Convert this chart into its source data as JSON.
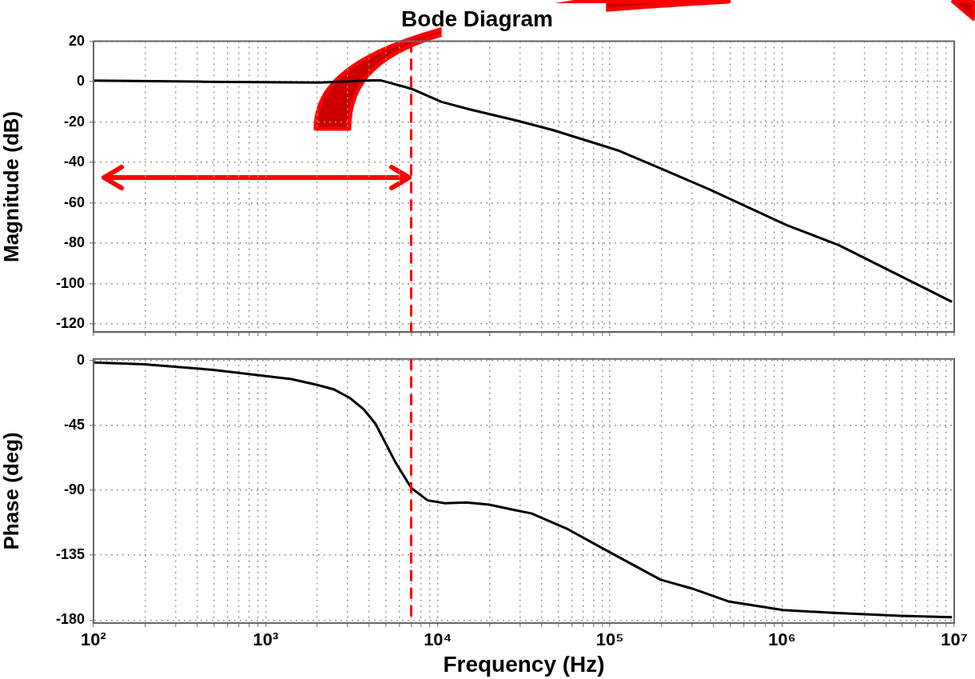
{
  "chart_data": [
    {
      "type": "line",
      "title": "Bode Diagram",
      "ylabel": "Magnitude (dB)",
      "log": "x",
      "grid": true,
      "legend": false,
      "marker": "none",
      "line_style": "solid",
      "tick_labels": "y",
      "xlim": [
        100,
        10000000
      ],
      "xticks": [
        100,
        200,
        300,
        400,
        500,
        600,
        700,
        800,
        900,
        1000,
        2000,
        3000,
        4000,
        5000,
        6000,
        7000,
        8000,
        9000,
        10000,
        20000,
        30000,
        40000,
        50000,
        60000,
        70000,
        80000,
        90000,
        100000,
        200000,
        300000,
        400000,
        500000,
        600000,
        700000,
        800000,
        900000,
        1000000,
        2000000,
        3000000,
        4000000,
        5000000,
        6000000,
        7000000,
        8000000,
        9000000,
        10000000
      ],
      "ylim": [
        -124,
        20
      ],
      "yticks": [
        20,
        0,
        -20,
        -40,
        -60,
        -80,
        -100,
        -120
      ],
      "series": [
        {
          "color": "#000000",
          "x": [
            100,
            400,
            2050,
            4170,
            4680,
            7020,
            10500,
            15300,
            28700,
            46800,
            111000,
            197000,
            379000,
            1060000,
            2140000,
            9700000
          ],
          "values": [
            0.5,
            0,
            -0.5,
            0.6,
            0.6,
            -3.5,
            -10,
            -13.7,
            -19.3,
            -24,
            -34,
            -43,
            -53.4,
            -71,
            -81,
            -109
          ]
        }
      ],
      "ref_lines": [
        {
          "axis": "x",
          "value": 7000,
          "color": "#ff0000",
          "line_style": "dashed"
        }
      ]
    },
    {
      "type": "line",
      "ylabel": "Phase (deg)",
      "xlabel": "Frequency (Hz)",
      "log": "x",
      "grid": true,
      "legend": false,
      "marker": "none",
      "line_style": "solid",
      "xlim": [
        100,
        10000000
      ],
      "xticks": [
        {
          "value": 100,
          "label": "10²"
        },
        {
          "value": 200,
          "label": null
        },
        {
          "value": 300,
          "label": null
        },
        {
          "value": 400,
          "label": null
        },
        {
          "value": 500,
          "label": null
        },
        {
          "value": 600,
          "label": null
        },
        {
          "value": 700,
          "label": null
        },
        {
          "value": 800,
          "label": null
        },
        {
          "value": 900,
          "label": null
        },
        {
          "value": 1000,
          "label": "10³"
        },
        {
          "value": 2000,
          "label": null
        },
        {
          "value": 3000,
          "label": null
        },
        {
          "value": 4000,
          "label": null
        },
        {
          "value": 5000,
          "label": null
        },
        {
          "value": 6000,
          "label": null
        },
        {
          "value": 7000,
          "label": null
        },
        {
          "value": 8000,
          "label": null
        },
        {
          "value": 9000,
          "label": null
        },
        {
          "value": 10000,
          "label": "10⁴"
        },
        {
          "value": 20000,
          "label": null
        },
        {
          "value": 30000,
          "label": null
        },
        {
          "value": 40000,
          "label": null
        },
        {
          "value": 50000,
          "label": null
        },
        {
          "value": 60000,
          "label": null
        },
        {
          "value": 70000,
          "label": null
        },
        {
          "value": 80000,
          "label": null
        },
        {
          "value": 90000,
          "label": null
        },
        {
          "value": 100000,
          "label": "10⁵"
        },
        {
          "value": 200000,
          "label": null
        },
        {
          "value": 300000,
          "label": null
        },
        {
          "value": 400000,
          "label": null
        },
        {
          "value": 500000,
          "label": null
        },
        {
          "value": 600000,
          "label": null
        },
        {
          "value": 700000,
          "label": null
        },
        {
          "value": 800000,
          "label": null
        },
        {
          "value": 900000,
          "label": null
        },
        {
          "value": 1000000,
          "label": "10⁶"
        },
        {
          "value": 2000000,
          "label": null
        },
        {
          "value": 3000000,
          "label": null
        },
        {
          "value": 4000000,
          "label": null
        },
        {
          "value": 5000000,
          "label": null
        },
        {
          "value": 6000000,
          "label": null
        },
        {
          "value": 7000000,
          "label": null
        },
        {
          "value": 8000000,
          "label": null
        },
        {
          "value": 9000000,
          "label": null
        },
        {
          "value": 10000000,
          "label": "10⁷"
        }
      ],
      "ylim": [
        -182,
        1
      ],
      "yticks": [
        0,
        -45,
        -90,
        -135,
        -180
      ],
      "series": [
        {
          "color": "#000000",
          "x": [
            100,
            197,
            497,
            1410,
            1990,
            2480,
            3080,
            3720,
            4350,
            5640,
            7020,
            8730,
            11000,
            14600,
            19900,
            28700,
            34900,
            57000,
            100000,
            197000,
            298000,
            487000,
            1010000,
            1970000,
            4870000,
            9700000
          ],
          "values": [
            -1.4,
            -2.7,
            -6.6,
            -13,
            -17,
            -20,
            -26,
            -34,
            -44,
            -70,
            -88.5,
            -97,
            -99,
            -98.4,
            -100,
            -104,
            -106,
            -117,
            -133,
            -152,
            -158,
            -167,
            -173,
            -175,
            -177,
            -178
          ]
        }
      ],
      "ref_lines": [
        {
          "axis": "x",
          "value": 7000,
          "color": "#ff0000",
          "line_style": "dashed"
        }
      ]
    }
  ]
}
